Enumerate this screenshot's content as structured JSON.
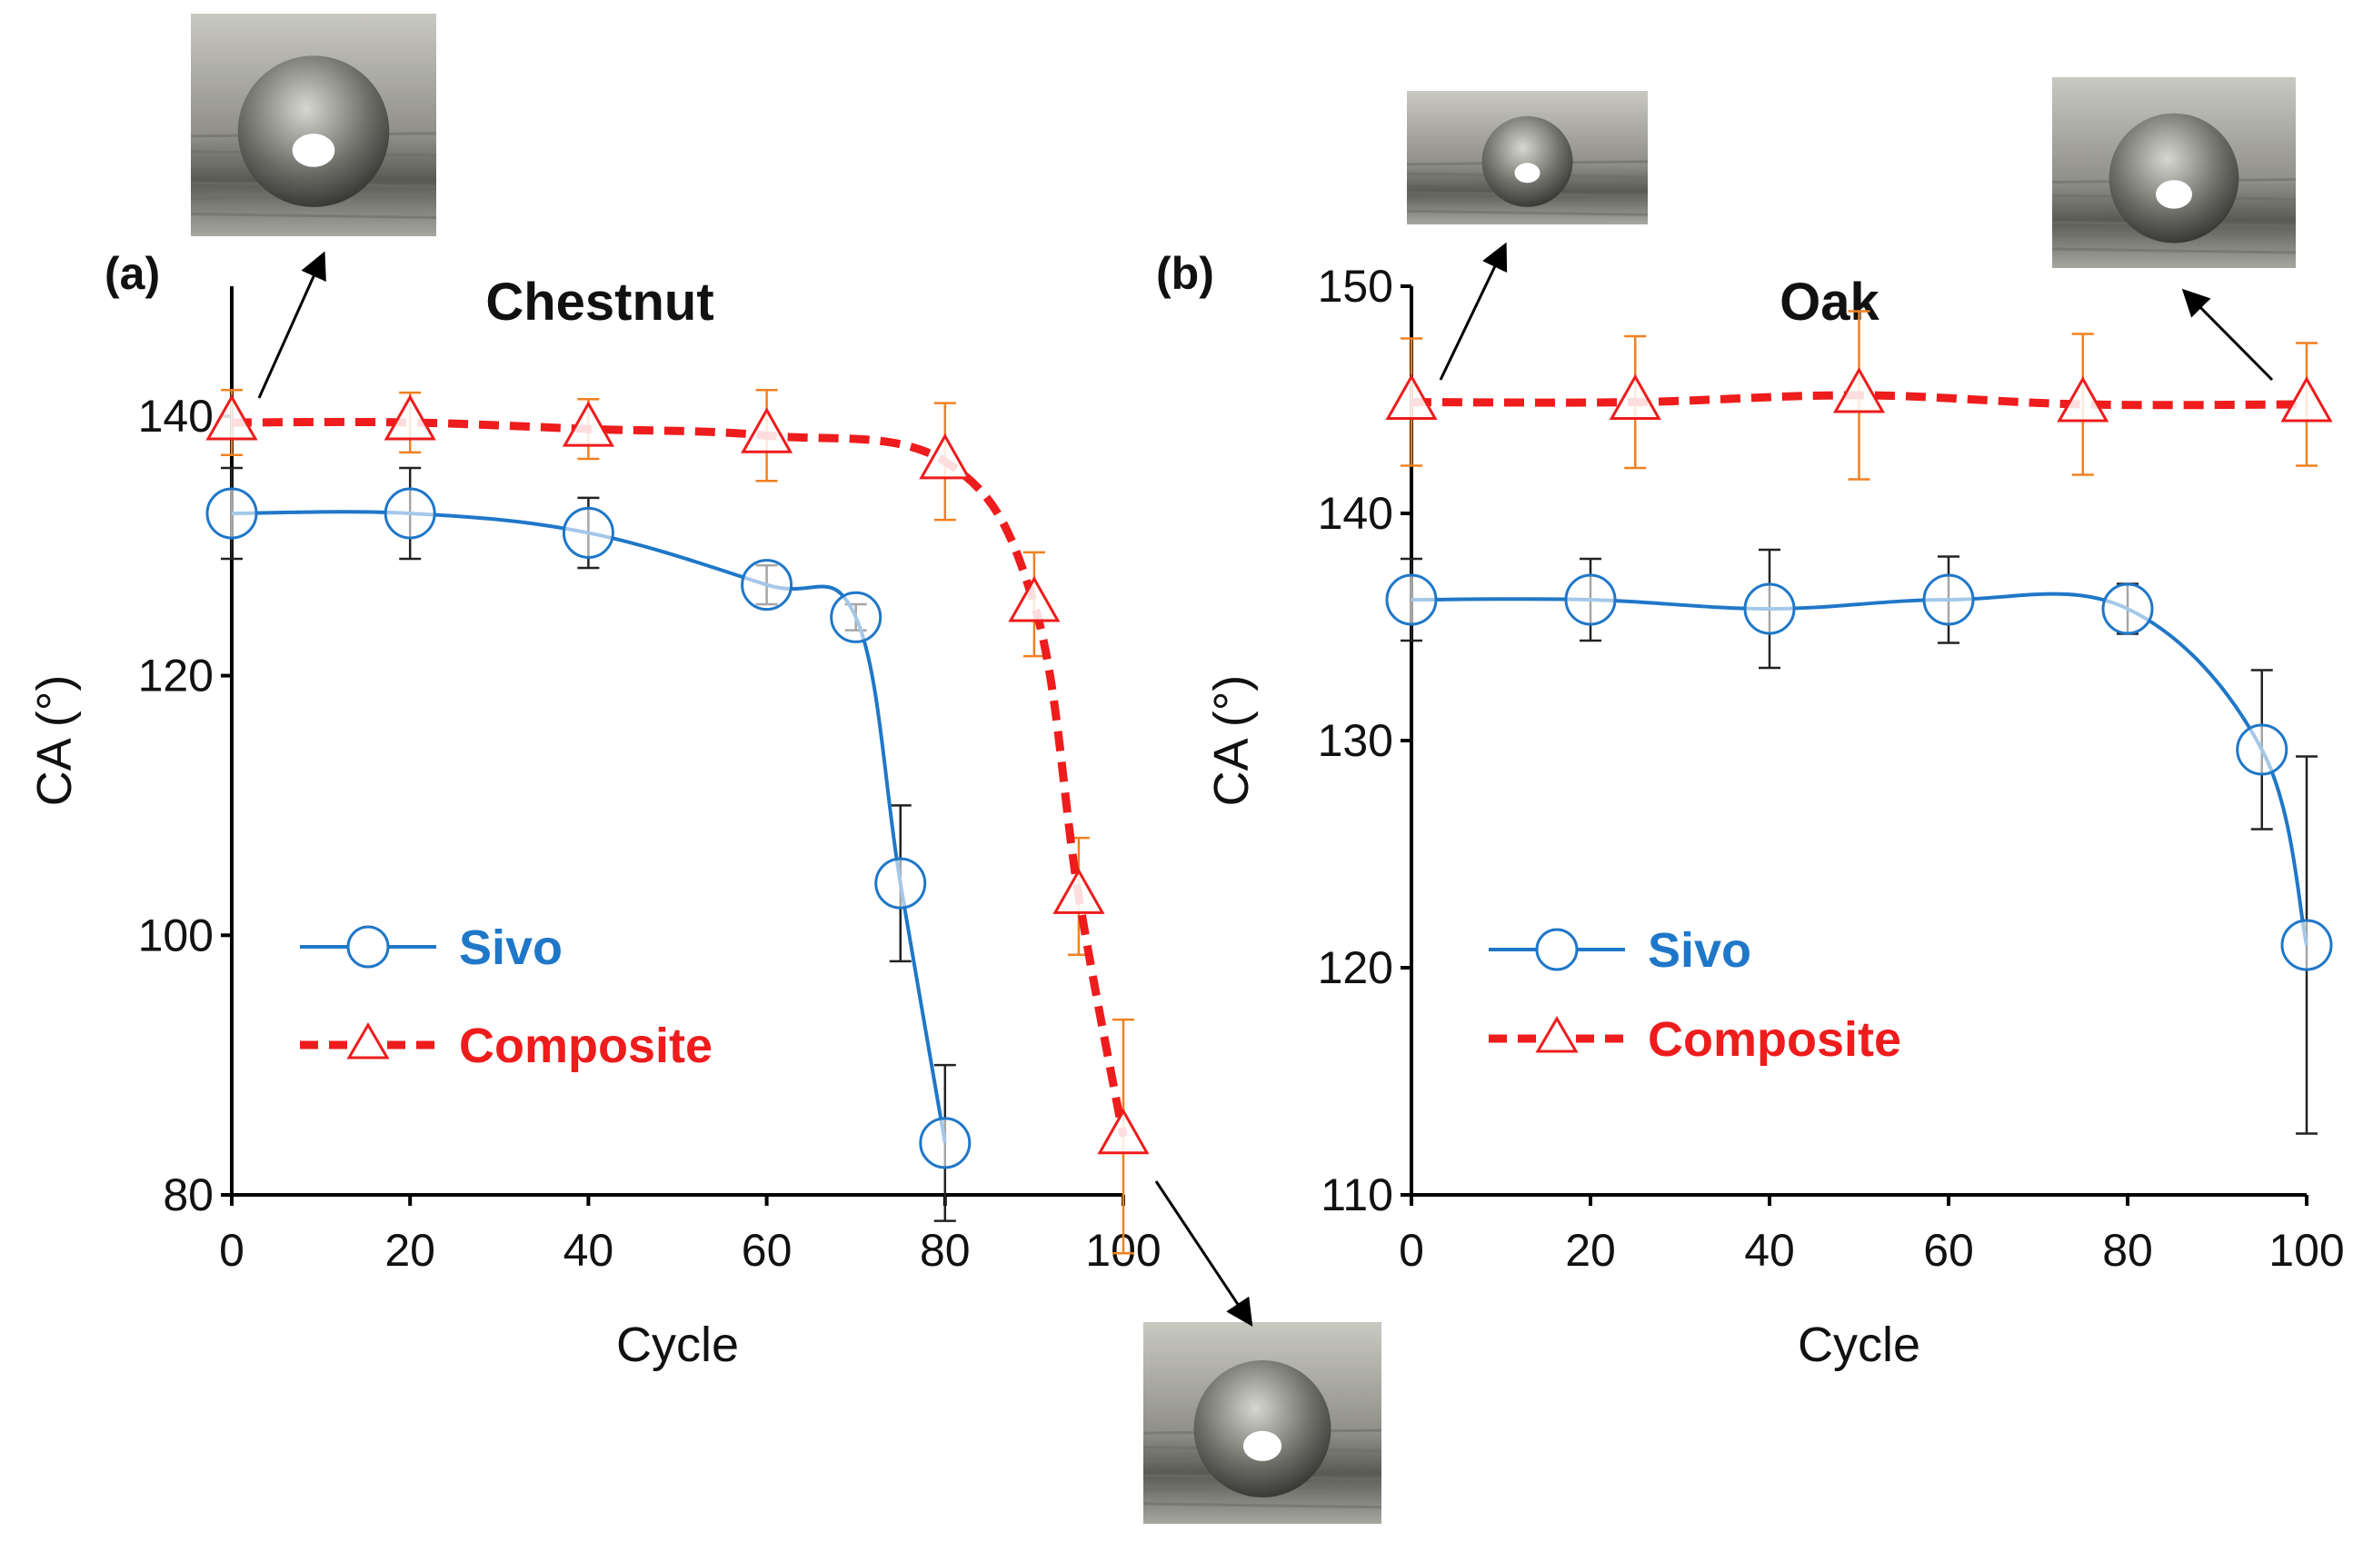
{
  "colors": {
    "sivo": "#1f77c8",
    "composite": "#ee1c1c",
    "composite_err": "#f08020",
    "axis": "#000000",
    "err_black": "#222222"
  },
  "chart_data": [
    {
      "type": "line",
      "panel_label": "(a)",
      "title": "Chestnut",
      "xlabel": "Cycle",
      "ylabel": "CA (°)",
      "xlim": [
        0,
        100
      ],
      "ylim": [
        80,
        150
      ],
      "xticks": [
        0,
        20,
        40,
        60,
        80,
        100
      ],
      "yticks": [
        80,
        100,
        120,
        140
      ],
      "legend": [
        "Sivo",
        "Composite"
      ],
      "series": [
        {
          "name": "Sivo",
          "x": [
            0,
            20,
            40,
            60,
            70,
            75,
            80
          ],
          "y": [
            132.5,
            132.5,
            131,
            127,
            124.5,
            104,
            84
          ],
          "err": [
            3.5,
            3.5,
            2.7,
            1.5,
            1,
            6,
            6
          ]
        },
        {
          "name": "Composite",
          "x": [
            0,
            20,
            40,
            60,
            80,
            90,
            95,
            100
          ],
          "y": [
            139.5,
            139.5,
            139,
            138.5,
            136.5,
            125.5,
            103,
            84.5
          ],
          "err": [
            2.5,
            2.3,
            2.3,
            3.5,
            4.5,
            4,
            4.5,
            9
          ]
        }
      ],
      "insets": [
        {
          "name": "droplet-photo-chestnut-0-cycles",
          "points_to_x": 0,
          "points_to_y": 139.5
        },
        {
          "name": "droplet-photo-chestnut-100-cycles",
          "points_to_x": 100,
          "points_to_y": 84.5
        }
      ]
    },
    {
      "type": "line",
      "panel_label": "(b)",
      "title": "Oak",
      "xlabel": "Cycle",
      "ylabel": "CA (°)",
      "xlim": [
        0,
        100
      ],
      "ylim": [
        110,
        150
      ],
      "xticks": [
        0,
        20,
        40,
        60,
        80,
        100
      ],
      "yticks": [
        110,
        120,
        130,
        140,
        150
      ],
      "legend": [
        "Sivo",
        "Composite"
      ],
      "series": [
        {
          "name": "Sivo",
          "x": [
            0,
            20,
            40,
            60,
            80,
            95,
            100
          ],
          "y": [
            136.2,
            136.2,
            135.8,
            136.2,
            135.8,
            129.6,
            121
          ],
          "err": [
            1.8,
            1.8,
            2.6,
            1.9,
            1.1,
            3.5,
            8.3
          ]
        },
        {
          "name": "Composite",
          "x": [
            0,
            25,
            50,
            75,
            100
          ],
          "y": [
            144.9,
            144.9,
            145.2,
            144.8,
            144.8
          ],
          "err": [
            2.8,
            2.9,
            3.7,
            3.1,
            2.7
          ]
        }
      ],
      "insets": [
        {
          "name": "droplet-photo-oak-0-cycles",
          "points_to_x": 0,
          "points_to_y": 144.9
        },
        {
          "name": "droplet-photo-oak-100-cycles",
          "points_to_x": 100,
          "points_to_y": 144.8
        }
      ]
    }
  ]
}
